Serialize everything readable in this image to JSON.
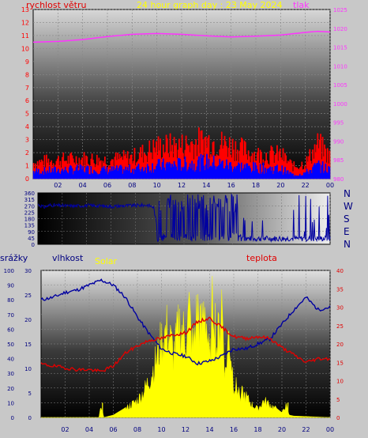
{
  "header": {
    "wind_label": "rychlost větru",
    "title": "24 hour graph day : 23 May 2024",
    "pressure_label": "tlak"
  },
  "compass": [
    "N",
    "W",
    "S",
    "E",
    "N"
  ],
  "bottom_labels": {
    "rain": "srážky",
    "humidity": "vlhkost",
    "solar": "Solar",
    "temperature": "teplota"
  },
  "colors": {
    "wind": "#ff0000",
    "gust": "#ff0000",
    "wind_avg": "#0000ff",
    "pressure": "#ff33ff",
    "direction": "#0000a0",
    "humidity": "#0000a0",
    "temperature": "#e00000",
    "solar": "#ffff00",
    "rain_axis": "#000080",
    "temp_axis": "#e00000"
  },
  "chart_data": [
    {
      "type": "line",
      "name": "wind_pressure",
      "x_ticks": [
        "02",
        "04",
        "06",
        "08",
        "10",
        "12",
        "14",
        "16",
        "18",
        "20",
        "22",
        "00"
      ],
      "y_left_ticks": [
        "0",
        "1",
        "2",
        "3",
        "4",
        "5",
        "6",
        "7",
        "8",
        "9",
        "10",
        "11",
        "12",
        "13"
      ],
      "y_right_ticks": [
        "980",
        "985",
        "990",
        "995",
        "1000",
        "1005",
        "1010",
        "1015",
        "1020",
        "1025"
      ],
      "ylim_left": [
        0,
        13
      ],
      "ylim_right": [
        980,
        1025
      ],
      "pressure": {
        "x": [
          0,
          2,
          4,
          6,
          8,
          10,
          12,
          14,
          16,
          18,
          20,
          22,
          23,
          24
        ],
        "y": [
          1016.3,
          1016.5,
          1017.0,
          1017.8,
          1018.4,
          1018.6,
          1018.4,
          1018.0,
          1017.7,
          1017.9,
          1018.2,
          1018.9,
          1019.2,
          1019.0
        ]
      },
      "gust_envelope": {
        "x": [
          0,
          2,
          4,
          6,
          8,
          10,
          12,
          14,
          16,
          18,
          20,
          21,
          22,
          23,
          24
        ],
        "y": [
          1.2,
          1.4,
          1.5,
          1.4,
          1.6,
          2.4,
          2.5,
          2.9,
          2.5,
          1.8,
          1.8,
          0.9,
          1.2,
          2.6,
          1.6
        ]
      },
      "avg_envelope": {
        "x": [
          0,
          2,
          4,
          6,
          8,
          10,
          12,
          14,
          16,
          18,
          20,
          21,
          22,
          23,
          24
        ],
        "y": [
          0.6,
          0.7,
          0.8,
          0.7,
          0.8,
          1.1,
          1.2,
          1.4,
          1.1,
          0.9,
          0.8,
          0.3,
          0.5,
          1.1,
          0.7
        ]
      }
    },
    {
      "type": "scatter",
      "name": "wind_direction",
      "y_ticks": [
        "360",
        "315",
        "270",
        "225",
        "180",
        "135",
        "90",
        "45",
        "0"
      ],
      "ylim": [
        0,
        360
      ],
      "x": [
        0,
        0.5,
        1,
        2,
        3,
        4,
        5,
        6,
        7,
        8,
        9,
        9.5,
        10,
        11,
        12,
        13,
        14,
        15,
        16,
        17,
        18,
        19,
        20,
        21,
        22,
        23,
        24
      ],
      "y": [
        280,
        260,
        275,
        270,
        268,
        272,
        270,
        265,
        270,
        272,
        275,
        260,
        20,
        200,
        150,
        280,
        60,
        290,
        40,
        300,
        30,
        25,
        20,
        25,
        100,
        40,
        30
      ]
    },
    {
      "type": "line",
      "name": "temp_humidity_solar",
      "x_ticks": [
        "02",
        "04",
        "06",
        "08",
        "10",
        "12",
        "14",
        "16",
        "18",
        "20",
        "22",
        "00"
      ],
      "rain_ticks": [
        "0",
        "10",
        "20",
        "30",
        "40",
        "50",
        "60",
        "70",
        "80",
        "90",
        "100"
      ],
      "humidity_ticks": [
        "0",
        "5",
        "10",
        "15",
        "20",
        "25",
        "30"
      ],
      "temperature_ticks": [
        "0",
        "5",
        "10",
        "15",
        "20",
        "25",
        "30",
        "35",
        "40"
      ],
      "humidity": {
        "x": [
          0,
          1,
          2,
          3,
          4,
          5,
          6,
          7,
          8,
          9,
          10,
          11,
          12,
          13,
          14,
          15,
          16,
          17,
          18,
          19,
          20,
          21,
          22,
          23,
          24
        ],
        "y": [
          24,
          24.5,
          25.5,
          26,
          27,
          28,
          27,
          24.5,
          20.5,
          17,
          14,
          13,
          12.5,
          11,
          11.5,
          12.5,
          14,
          14,
          15,
          16,
          19,
          22,
          24.5,
          22,
          22.5
        ]
      },
      "temperature": {
        "x": [
          0,
          1,
          2,
          3,
          4,
          5,
          6,
          7,
          8,
          9,
          10,
          11,
          12,
          13,
          14,
          15,
          16,
          17,
          18,
          19,
          20,
          21,
          22,
          23,
          24
        ],
        "y": [
          14.5,
          14,
          13.5,
          13,
          13,
          12.5,
          14,
          17.5,
          19.5,
          21,
          21.5,
          22.5,
          23,
          26,
          27,
          24.5,
          22,
          21.5,
          22,
          21.5,
          19,
          17,
          15,
          16,
          16
        ]
      },
      "solar": {
        "x": [
          0,
          4.8,
          5,
          5.2,
          6,
          7,
          8,
          8.5,
          9,
          9.5,
          10,
          10.5,
          11,
          11.5,
          12,
          12.3,
          12.6,
          13,
          13.3,
          13.6,
          14,
          14.3,
          14.6,
          15,
          15.3,
          15.6,
          16,
          16.5,
          17,
          17.5,
          18,
          18.5,
          19,
          19.5,
          20,
          20.3,
          20.6,
          21,
          24
        ],
        "y": [
          0,
          0,
          3,
          0,
          0.5,
          2,
          4,
          6,
          9,
          13,
          18,
          21,
          15,
          22,
          19,
          25,
          16,
          26,
          20,
          28,
          12,
          30,
          16,
          28,
          10,
          20,
          8,
          6,
          5,
          3,
          2,
          4,
          3,
          2,
          1,
          3,
          0.5,
          0.3,
          0
        ]
      }
    }
  ]
}
